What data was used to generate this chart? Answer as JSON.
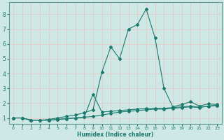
{
  "xlabel": "Humidex (Indice chaleur)",
  "bg_color": "#cde8e5",
  "grid_color": "#e8c8c8",
  "line_color": "#1a7a6e",
  "spine_color": "#5a9a90",
  "xlim": [
    -0.5,
    23.5
  ],
  "ylim": [
    0.6,
    8.8
  ],
  "x_ticks": [
    0,
    1,
    2,
    3,
    4,
    5,
    6,
    7,
    8,
    9,
    10,
    11,
    12,
    13,
    14,
    15,
    16,
    17,
    18,
    19,
    20,
    21,
    22,
    23
  ],
  "y_ticks": [
    1,
    2,
    3,
    4,
    5,
    6,
    7,
    8
  ],
  "series1_x": [
    0,
    1,
    2,
    3,
    4,
    5,
    6,
    7,
    8,
    9,
    10,
    11,
    12,
    13,
    14,
    15,
    16,
    17,
    18,
    19,
    20,
    21,
    22,
    23
  ],
  "series1_y": [
    1.0,
    1.0,
    0.85,
    0.85,
    0.85,
    0.9,
    0.95,
    1.0,
    1.05,
    1.1,
    1.2,
    1.3,
    1.4,
    1.45,
    1.5,
    1.55,
    1.6,
    1.6,
    1.65,
    1.7,
    1.75,
    1.7,
    1.8,
    1.85
  ],
  "series2_x": [
    0,
    1,
    2,
    3,
    4,
    5,
    6,
    7,
    8,
    9,
    10,
    11,
    12,
    13,
    14,
    15,
    16,
    17,
    18,
    19,
    20,
    21,
    22,
    23
  ],
  "series2_y": [
    1.0,
    1.0,
    0.85,
    0.85,
    0.9,
    1.0,
    1.1,
    1.2,
    1.35,
    1.55,
    4.1,
    5.8,
    5.0,
    7.0,
    7.3,
    8.35,
    6.4,
    3.0,
    1.75,
    1.9,
    2.1,
    1.8,
    1.95,
    1.9
  ],
  "series3_x": [
    0,
    1,
    2,
    3,
    4,
    5,
    6,
    7,
    8,
    9,
    10,
    11,
    12,
    13,
    14,
    15,
    16,
    17,
    18,
    19,
    20,
    21,
    22,
    23
  ],
  "series3_y": [
    1.0,
    1.0,
    0.85,
    0.85,
    0.85,
    0.9,
    0.95,
    1.0,
    1.05,
    2.6,
    1.4,
    1.45,
    1.5,
    1.55,
    1.6,
    1.65,
    1.65,
    1.65,
    1.7,
    1.75,
    1.8,
    1.72,
    1.8,
    1.85
  ]
}
